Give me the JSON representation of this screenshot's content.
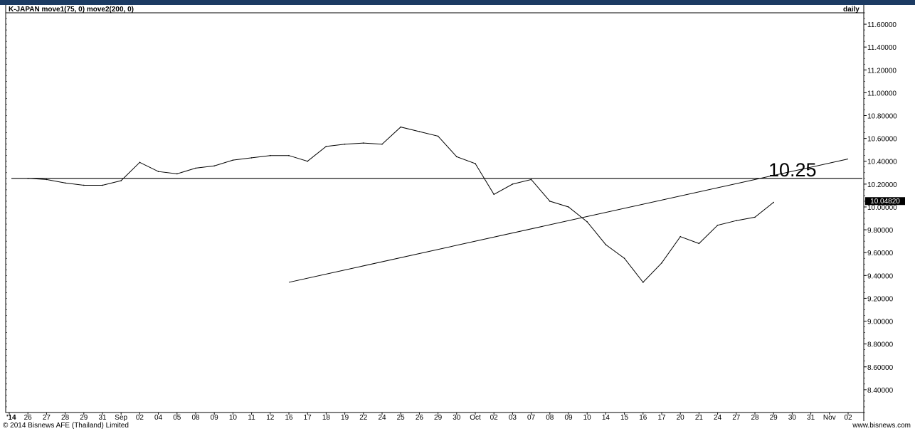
{
  "footer": {
    "copyright": "© 2014 Bisnews AFE (Thailand) Limited",
    "website": "www.bisnews.com"
  },
  "colors": {
    "top_bar": "#1c3b63",
    "line": "#000000",
    "current_value_box": "#000000"
  },
  "chart_data": {
    "type": "line",
    "title": "K-JAPAN move1(75, 0) move2(200, 0)",
    "frequency_label": "daily",
    "xlabel": "",
    "ylabel": "",
    "ylim": [
      8.2,
      11.7
    ],
    "y_ticks": [
      "11.60000",
      "11.40000",
      "11.20000",
      "11.00000",
      "10.80000",
      "10.60000",
      "10.40000",
      "10.20000",
      "10.00000",
      "9.80000",
      "9.60000",
      "9.40000",
      "9.20000",
      "9.00000",
      "8.80000",
      "8.60000",
      "8.40000"
    ],
    "x_tick_labels": [
      "'14",
      "26",
      "27",
      "28",
      "29",
      "31",
      "Sep",
      "02",
      "04",
      "05",
      "08",
      "09",
      "10",
      "11",
      "12",
      "16",
      "17",
      "18",
      "19",
      "22",
      "24",
      "25",
      "26",
      "29",
      "30",
      "Oct",
      "02",
      "03",
      "07",
      "08",
      "09",
      "10",
      "14",
      "15",
      "16",
      "17",
      "20",
      "21",
      "24",
      "27",
      "28",
      "29",
      "30",
      "31",
      "Nov",
      "02"
    ],
    "series": [
      {
        "values": [
          10.25,
          10.24,
          10.21,
          10.19,
          10.19,
          10.23,
          10.39,
          10.31,
          10.29,
          10.34,
          10.36,
          10.41,
          10.43,
          10.45,
          10.45,
          10.4,
          10.53,
          10.55,
          10.56,
          10.55,
          10.7,
          10.66,
          10.62,
          10.44,
          10.38,
          10.11,
          10.2,
          10.24,
          10.05,
          10.0,
          9.87,
          9.67,
          9.55,
          9.34,
          9.51,
          9.74,
          9.68,
          9.84,
          9.88,
          9.91,
          10.04
        ]
      }
    ],
    "current_value": "10.04820",
    "annotations": [
      {
        "type": "horizontal_line",
        "value": 10.25,
        "label": "10.25"
      },
      {
        "type": "trend_line",
        "from": {
          "x": "16",
          "y": 9.34
        },
        "to": {
          "x": "02",
          "y": 10.42
        }
      }
    ],
    "grid": false,
    "legend": "none"
  }
}
